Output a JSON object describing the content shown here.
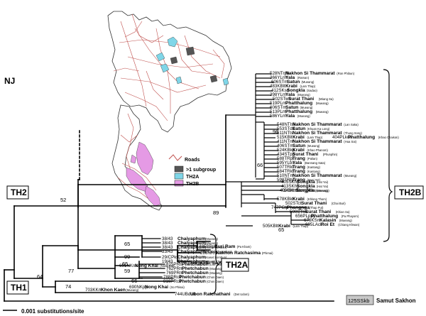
{
  "method_label": "NJ",
  "scale_label": "0.001 substitutions/site",
  "group_labels": {
    "th1": "TH1",
    "th2": "TH2",
    "th2a": "TH2A",
    "th2b": "TH2B"
  },
  "outgroup": {
    "code": "125SSkb",
    "province": "Samut Sakhon"
  },
  "legend": {
    "roads": "Roads",
    "subgroup": ">1 subgroup",
    "th2a": "TH2A",
    "th2b": "TH2B"
  },
  "colors": {
    "th2a": "#7fd6e8",
    "th2b": "#e59ae5",
    "mixed": "#555555",
    "roads": "#c0504d",
    "outgroup_box": "#c8c8c8"
  },
  "bootstraps": [
    {
      "id": "bs52",
      "value": "52"
    },
    {
      "id": "bs89",
      "value": "89"
    },
    {
      "id": "bs99",
      "value": "99"
    },
    {
      "id": "bs66a",
      "value": "66"
    },
    {
      "id": "bs65a",
      "value": "65"
    },
    {
      "id": "bs65b",
      "value": "65"
    },
    {
      "id": "bs64",
      "value": "64"
    },
    {
      "id": "bs77",
      "value": "77"
    },
    {
      "id": "bs74",
      "value": "74"
    },
    {
      "id": "bs65c",
      "value": "65"
    },
    {
      "id": "bs59",
      "value": "59"
    },
    {
      "id": "bs66b",
      "value": "66"
    },
    {
      "id": "bs96",
      "value": "96"
    }
  ],
  "th2b_leaves": [
    {
      "code": "528NTrpb",
      "province": "Nakhon Si Thammarat",
      "district": "(Ron Phibun)"
    },
    {
      "code": "366YLrm",
      "province": "Yala",
      "district": "(Raman)"
    },
    {
      "code": "606STm",
      "province": "Satun",
      "district": "(Mueang)"
    },
    {
      "code": "483KBlt",
      "province": "Krabi",
      "district": "(Lam Thap)"
    },
    {
      "code": "412SKsd",
      "province": "Songkla",
      "district": "(Sadao)"
    },
    {
      "code": "398YLm",
      "province": "Yala",
      "district": "(Mueang)"
    },
    {
      "code": "502STws",
      "province": "Surat Thani",
      "district": "(Wiang Sa)"
    },
    {
      "code": "519PLm",
      "province": "Phatthalung",
      "district": "(Mueang)"
    },
    {
      "code": "606STm",
      "province": "Satun",
      "district": "(Mueang)"
    },
    {
      "code": "513PLm",
      "province": "Phatthalung",
      "district": "(Mueang)"
    },
    {
      "code": "586YLm",
      "province": "Yala",
      "district": "(Mueang)"
    },
    {
      "code": "548NTIsk",
      "province": "Nakhon Si Thammarat",
      "district": "(Lan Saka)"
    },
    {
      "code": "553STdk",
      "province": "Satun",
      "district": "(Khuan Ka Long)"
    },
    {
      "code": "511NTts",
      "province": "Nakhon Si Thammarat",
      "district": "(Thung Song)"
    },
    {
      "code": "515KBlt",
      "province": "Krabi",
      "district": "(Lam Thap)"
    },
    {
      "code": "404PLkcs",
      "province": "Phatthalung",
      "district": "(Khao Chaison)"
    },
    {
      "code": "411NTnt",
      "province": "Nakhon Si Thammarat",
      "district": "(Hua Sai)"
    },
    {
      "code": "406STm",
      "province": "Satun",
      "district": "(Mueang)"
    },
    {
      "code": "524KBkp",
      "province": "Krabi",
      "district": "(Khao Phanom)"
    },
    {
      "code": "434STpp",
      "province": "Surat Thani",
      "district": "(Phunphin)"
    },
    {
      "code": "588TRpl",
      "province": "Trang",
      "district": "(Palian)"
    },
    {
      "code": "595YLbs",
      "province": "Yala",
      "district": "(Bannang Sata)"
    },
    {
      "code": "507TRkt",
      "province": "Trang",
      "district": "(Kantang)"
    },
    {
      "code": "584TRkt",
      "province": "Trang",
      "district": "(Kantang)"
    },
    {
      "code": "510NTm",
      "province": "Nakhon Si Thammarat",
      "district": "(Mueang)"
    },
    {
      "code": "598TRty",
      "province": "Trang",
      "district": "(Huai Yot)"
    },
    {
      "code": "405SKhy",
      "province": "Songkla",
      "district": "(Hat Yai)"
    },
    {
      "code": "413SKhy",
      "province": "Songkla",
      "district": "(Hat Yai)"
    },
    {
      "code": "414SKm",
      "province": "Songkla",
      "district": "(Mueang)"
    },
    {
      "code": "409SKm",
      "province": "Songkla",
      "district": "(Mueang)"
    },
    {
      "code": "578KBkt",
      "province": "Krabi",
      "district": "(Khlong Thom)"
    },
    {
      "code": "502STct",
      "province": "Surat Thani",
      "district": "(Chai Buri)"
    },
    {
      "code": "747PGtp",
      "province": "Phangnga",
      "district": "(Thap Put)"
    },
    {
      "code": "500STks",
      "province": "Surat Thani",
      "district": "(Khian Sa)"
    },
    {
      "code": "656PLppy",
      "province": "Phatthalung",
      "district": "(Pa Phayom)"
    },
    {
      "code": "676KSm",
      "province": "Kalasin",
      "district": "(Mueang)"
    },
    {
      "code": "695LAck",
      "province": "Roi Et",
      "district": "(Chiang Khwan)"
    },
    {
      "code": "505KBlt",
      "province": "Krabi",
      "district": "(Lam Thap)"
    }
  ],
  "th2_other_leaves": [
    {
      "code": "485BRpk",
      "province": "Buri Ram",
      "district": "(Pa Kham)"
    },
    {
      "code": "286NRm",
      "province": "Nakhon Ratchasima",
      "district": "(Phimai)"
    },
    {
      "code": "489SKkh",
      "province": "Si Sa Ket",
      "district": "(Khun Han)"
    }
  ],
  "th2a_leaves": [
    {
      "code": "38/43",
      "province": "Chaiyaphum",
      "district": "(Mueang)"
    },
    {
      "code": "38/43",
      "province": "Chaiyaphum",
      "district": "(Mueang)"
    },
    {
      "code": "38/43",
      "province": "Chaiyaphum",
      "district": "(Kaset Sombun)"
    },
    {
      "code": "33/43",
      "province": "Chaiyaphum",
      "district": "(Phakdi Chumphon)"
    },
    {
      "code": "29/CPks",
      "province": "Chaiyaphum",
      "district": "(Kaset Sombun)"
    },
    {
      "code": "19/43",
      "province": "Chaiyaphum",
      "district": "(Phakdi Chumphon)"
    },
    {
      "code": "691NKnk",
      "province": "Nong Khai",
      "district": "(Nong Kai)"
    },
    {
      "code": "815PRls",
      "province": "Phetchabun",
      "district": "(Lom Sak)"
    },
    {
      "code": "762PRm",
      "province": "Phetchabun",
      "district": "(Mueang)"
    },
    {
      "code": "769PRm",
      "province": "Phetchabun",
      "district": "(Mueang)"
    },
    {
      "code": "788PRcd",
      "province": "Phetchabun",
      "district": "(Chon Daen)"
    },
    {
      "code": "816PRcd",
      "province": "Phetchabun",
      "district": "(Chon Daen)"
    },
    {
      "code": "690NKpp",
      "province": "Nong Khai",
      "district": "(So Phisai)"
    },
    {
      "code": "703KKm",
      "province": "Khon Kaen",
      "district": "(Mueang)"
    },
    {
      "code": "744UBdud",
      "province": "Ubon Ratchathani",
      "district": "(Det Udom)"
    }
  ]
}
